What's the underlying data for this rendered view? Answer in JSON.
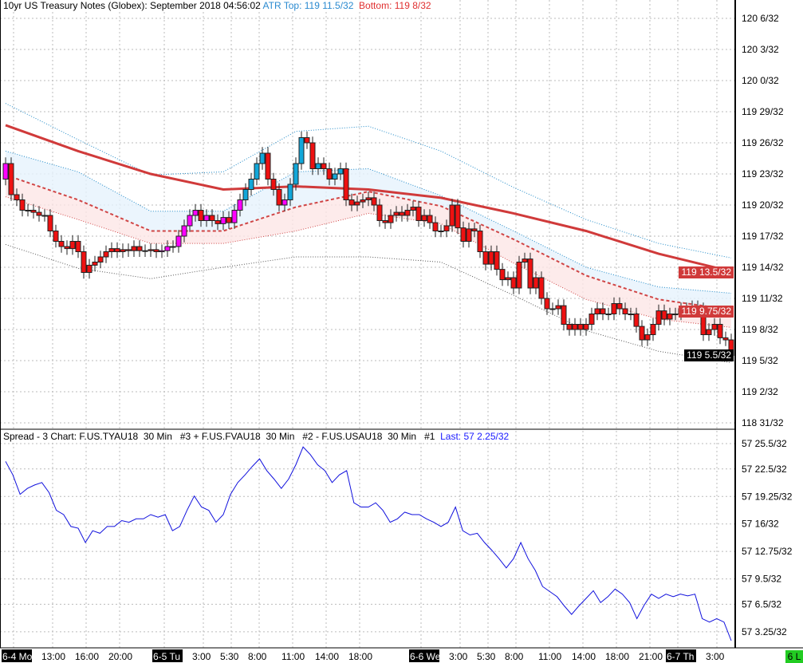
{
  "header": {
    "title": "10yr US Treasury Notes (Globex): September 2018 04:56:02",
    "atr_top": "ATR Top: 119 11.5/32",
    "atr_bottom": "Bottom: 119 8/32"
  },
  "spread_header": {
    "title": "Spread - 3 Chart: F.US.TYAU18  30 Min   #3 + F.US.FVAU18  30 Min   #2 - F.US.USAU18  30 Min   #1",
    "last": "Last: 57 2.25/32"
  },
  "colors": {
    "up_above": "#12a7d9",
    "up_below": "#ff00ff",
    "down": "#ee1111",
    "ma": "#d03a3a",
    "band_blue": "#1f8ac8",
    "band_red": "#d04545",
    "outer": "#555555",
    "spread_line": "#1010dd",
    "atr_text": "#2a8ad0",
    "bottom_text": "#e03030",
    "last_text": "#1a1aff",
    "tag_red": "#d03a3a",
    "tag_black": "#000000",
    "status_green": "#22cc22"
  },
  "price_tags": [
    {
      "label": "119 13.5/32",
      "value": 13.5,
      "bg": "#d03a3a"
    },
    {
      "label": "119 9.75/32",
      "value": 9.75,
      "bg": "#d03a3a"
    },
    {
      "label": "119 5.5/32",
      "value": 5.5,
      "bg": "#000000"
    }
  ],
  "status_badge": "6 L",
  "chart_data": [
    {
      "type": "candlestick",
      "title": "10yr US Treasury Notes (Globex): September 2018",
      "units": "32nds above 119",
      "y_axis": {
        "ticks": [
          {
            "label": "120 6/32",
            "value": 38
          },
          {
            "label": "120 3/32",
            "value": 35
          },
          {
            "label": "120 0/32",
            "value": 32
          },
          {
            "label": "119 29/32",
            "value": 29
          },
          {
            "label": "119 26/32",
            "value": 26
          },
          {
            "label": "119 23/32",
            "value": 23
          },
          {
            "label": "119 20/32",
            "value": 20
          },
          {
            "label": "119 17/32",
            "value": 17
          },
          {
            "label": "119 14/32",
            "value": 14
          },
          {
            "label": "119 11/32",
            "value": 11
          },
          {
            "label": "119 8/32",
            "value": 8
          },
          {
            "label": "119 5/32",
            "value": 5
          },
          {
            "label": "119 2/32",
            "value": 2
          },
          {
            "label": "118 31/32",
            "value": -1
          }
        ]
      },
      "first_open": 22.5,
      "closes": [
        24,
        21,
        20.5,
        19.5,
        19.5,
        19.3,
        19,
        19,
        17.5,
        16.5,
        16,
        15.8,
        16.5,
        15.5,
        13.5,
        14.2,
        14.5,
        15,
        15.5,
        15.8,
        15.5,
        15.7,
        15.6,
        16,
        15.6,
        15.6,
        15.7,
        15.5,
        15.6,
        16,
        16,
        17,
        18,
        19,
        19.5,
        18.5,
        19,
        18.5,
        18.2,
        18.8,
        18.3,
        19.5,
        20.5,
        21.5,
        22.5,
        24,
        25,
        22.5,
        21.5,
        20,
        20.5,
        22,
        24,
        26.5,
        26,
        23.5,
        24,
        23.5,
        22.5,
        23,
        23.5,
        20.5,
        20,
        20.3,
        20.5,
        20.7,
        20,
        18.5,
        18.3,
        19,
        19.3,
        19,
        19.5,
        19.8,
        18.5,
        19,
        18.3,
        17.5,
        17.5,
        18,
        20,
        17.8,
        16.5,
        17.7,
        17.5,
        15.5,
        14.3,
        15.5,
        13.8,
        12.8,
        13,
        12,
        14.5,
        14.8,
        12,
        13,
        11,
        10,
        10,
        10.3,
        8.5,
        8,
        8.5,
        8,
        8.5,
        9.5,
        10,
        9.5,
        9.5,
        10.5,
        10,
        9.5,
        9.5,
        8.3,
        7,
        7.5,
        8.5,
        9.8,
        9,
        9.5,
        9.5,
        10,
        10,
        10.2,
        10,
        7.5,
        8,
        8.5,
        7.2,
        7,
        5.5
      ],
      "indicators": {
        "sample_every_bars": 13,
        "moving_average": [
          27.7,
          25.2,
          23.0,
          21.5,
          21.8,
          21.5,
          20.7,
          19.2,
          17.5,
          15.3,
          13.6
        ],
        "upper_outer": [
          29.8,
          26.3,
          22.9,
          23.2,
          27.1,
          27.6,
          25.2,
          21.7,
          18.6,
          16.3,
          14.9
        ],
        "upper_inner": [
          25.2,
          23.2,
          19.4,
          19.4,
          23.2,
          23.5,
          20.9,
          17.5,
          14.0,
          12.1,
          11.5
        ],
        "middle": [
          22.9,
          20.5,
          17.5,
          17.5,
          19.8,
          21.3,
          19.9,
          16.7,
          13.2,
          10.9,
          9.9
        ],
        "lower_inner": [
          20.8,
          18.6,
          16.3,
          16.3,
          17.5,
          19.2,
          18.2,
          14.4,
          10.9,
          9.0,
          8.2
        ],
        "lower_outer": [
          16.2,
          13.9,
          12.9,
          14.0,
          15.0,
          15.0,
          14.5,
          11.3,
          7.9,
          5.9,
          4.8
        ]
      }
    },
    {
      "type": "line",
      "title": "Spread - 3 Chart",
      "units": "32nds above 57",
      "y_axis": {
        "ticks": [
          {
            "label": "57 25.5/32",
            "value": 25.5
          },
          {
            "label": "57 22.5/32",
            "value": 22.5
          },
          {
            "label": "57 19.25/32",
            "value": 19.25
          },
          {
            "label": "57 16/32",
            "value": 16
          },
          {
            "label": "57 12.75/32",
            "value": 12.75
          },
          {
            "label": "57 9.5/32",
            "value": 9.5
          },
          {
            "label": "57 6.5/32",
            "value": 6.5
          },
          {
            "label": "57 3.25/32",
            "value": 3.25
          }
        ]
      },
      "values": [
        23.4,
        21.8,
        19.5,
        20.2,
        20.6,
        20.9,
        19.7,
        17.6,
        17.1,
        15.7,
        15.5,
        13.8,
        15.2,
        14.9,
        15.7,
        15.7,
        16.4,
        16.2,
        16.6,
        16.6,
        17.1,
        16.8,
        17.1,
        15.2,
        15.7,
        17.6,
        19.3,
        18.0,
        17.6,
        16.2,
        17.1,
        19.5,
        20.9,
        21.8,
        22.8,
        23.7,
        22.3,
        21.3,
        20.2,
        21.3,
        23.0,
        25.1,
        24.2,
        23.0,
        22.3,
        20.9,
        21.8,
        22.3,
        18.5,
        18.0,
        18.0,
        18.5,
        17.6,
        16.2,
        16.6,
        17.4,
        17.1,
        17.1,
        16.6,
        16.2,
        15.7,
        16.2,
        18.0,
        15.2,
        14.7,
        14.9,
        13.8,
        12.9,
        11.9,
        10.8,
        11.9,
        13.8,
        11.9,
        10.5,
        8.6,
        8.0,
        7.4,
        6.3,
        5.3,
        6.3,
        7.2,
        8.1,
        6.7,
        7.4,
        8.3,
        7.7,
        6.7,
        4.8,
        6.4,
        7.7,
        7.2,
        7.7,
        7.4,
        7.7,
        7.5,
        7.7,
        4.8,
        4.4,
        4.8,
        4.4,
        2.2
      ]
    }
  ],
  "x_axis": {
    "labels": [
      {
        "text": "6-4 Mo",
        "day": true,
        "bar": 0
      },
      {
        "text": "13:00",
        "bar": 7
      },
      {
        "text": "16:00",
        "bar": 13
      },
      {
        "text": "20:00",
        "bar": 19
      },
      {
        "text": "6-5 Tu",
        "day": true,
        "bar": 27
      },
      {
        "text": "3:00",
        "bar": 34
      },
      {
        "text": "5:30",
        "bar": 39
      },
      {
        "text": "8:00",
        "bar": 44
      },
      {
        "text": "11:00",
        "bar": 50
      },
      {
        "text": "14:00",
        "bar": 56
      },
      {
        "text": "18:00",
        "bar": 62
      },
      {
        "text": "6-6 We",
        "day": true,
        "bar": 73
      },
      {
        "text": "3:00",
        "bar": 80
      },
      {
        "text": "5:30",
        "bar": 85
      },
      {
        "text": "8:00",
        "bar": 90
      },
      {
        "text": "11:00",
        "bar": 96
      },
      {
        "text": "14:00",
        "bar": 102
      },
      {
        "text": "18:00",
        "bar": 108
      },
      {
        "text": "21:00",
        "bar": 114
      },
      {
        "text": "6-7 Th",
        "day": true,
        "bar": 119
      },
      {
        "text": "3:00",
        "bar": 126
      }
    ]
  }
}
